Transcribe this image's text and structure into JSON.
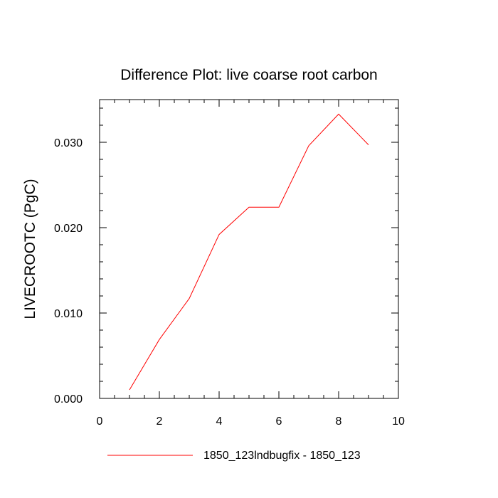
{
  "chart_data": {
    "type": "line",
    "title": "Difference Plot: live coarse root carbon",
    "xlabel": "",
    "ylabel": "LIVECROOTC  (PgC)",
    "xlim": [
      0,
      10
    ],
    "ylim": [
      0,
      0.035
    ],
    "x_ticks": [
      0,
      2,
      4,
      6,
      8,
      10
    ],
    "x_tick_labels": [
      "0",
      "2",
      "4",
      "6",
      "8",
      "10"
    ],
    "y_ticks": [
      0,
      0.01,
      0.02,
      0.03
    ],
    "y_tick_labels": [
      "0.000",
      "0.010",
      "0.020",
      "0.030"
    ],
    "x_minor_step": 0.5,
    "y_minor_step": 0.002,
    "grid": false,
    "legend_position": "bottom-center",
    "series": [
      {
        "name": "1850_123lndbugfix - 1850_123",
        "color": "#ff0000",
        "x": [
          1,
          2,
          3,
          4,
          5,
          6,
          7,
          8,
          9
        ],
        "y": [
          0.001,
          0.0069,
          0.0117,
          0.0192,
          0.0224,
          0.0224,
          0.0296,
          0.0333,
          0.0297
        ]
      }
    ]
  }
}
